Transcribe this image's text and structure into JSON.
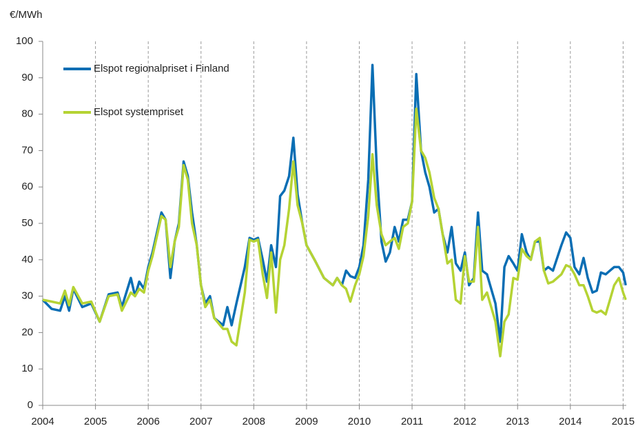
{
  "chart_data": {
    "type": "line",
    "y_label": "€/MWh",
    "x": [
      2004.0,
      2004.17,
      2004.33,
      2004.42,
      2004.5,
      2004.58,
      2004.75,
      2004.92,
      2005.08,
      2005.25,
      2005.42,
      2005.5,
      2005.67,
      2005.75,
      2005.83,
      2005.92,
      2006.0,
      2006.08,
      2006.25,
      2006.33,
      2006.42,
      2006.5,
      2006.58,
      2006.67,
      2006.75,
      2006.83,
      2006.92,
      2007.0,
      2007.08,
      2007.17,
      2007.25,
      2007.42,
      2007.5,
      2007.58,
      2007.67,
      2007.83,
      2007.92,
      2008.0,
      2008.08,
      2008.17,
      2008.25,
      2008.33,
      2008.42,
      2008.5,
      2008.58,
      2008.67,
      2008.75,
      2008.83,
      2008.92,
      2009.0,
      2009.17,
      2009.33,
      2009.5,
      2009.58,
      2009.67,
      2009.75,
      2009.83,
      2009.92,
      2010.0,
      2010.08,
      2010.17,
      2010.25,
      2010.33,
      2010.42,
      2010.5,
      2010.58,
      2010.67,
      2010.75,
      2010.83,
      2010.92,
      2011.0,
      2011.08,
      2011.17,
      2011.25,
      2011.33,
      2011.42,
      2011.5,
      2011.58,
      2011.67,
      2011.75,
      2011.83,
      2011.92,
      2012.0,
      2012.08,
      2012.17,
      2012.25,
      2012.33,
      2012.42,
      2012.58,
      2012.67,
      2012.75,
      2012.83,
      2012.92,
      2013.0,
      2013.08,
      2013.17,
      2013.25,
      2013.33,
      2013.42,
      2013.5,
      2013.58,
      2013.67,
      2013.83,
      2013.92,
      2014.0,
      2014.08,
      2014.17,
      2014.25,
      2014.33,
      2014.42,
      2014.5,
      2014.58,
      2014.67,
      2014.75,
      2014.83,
      2014.92,
      2015.0,
      2015.05
    ],
    "series": [
      {
        "name": "Elspot regionalpriset i Finland",
        "color": "#0a6eb4",
        "values": [
          29,
          26.5,
          26,
          30,
          26,
          32,
          27,
          28,
          23,
          30.5,
          31,
          27,
          35,
          30,
          34,
          32,
          38,
          42,
          53,
          51,
          35,
          45,
          50,
          67,
          63,
          53,
          44,
          33,
          28,
          30,
          24,
          22,
          27,
          22,
          28,
          38,
          46,
          45.5,
          46,
          40,
          34,
          44,
          38,
          57.5,
          59,
          63,
          73.5,
          58,
          50,
          44,
          39.5,
          35,
          33,
          35,
          33,
          37,
          35.5,
          35,
          38,
          44,
          62,
          93.5,
          65,
          45,
          39.5,
          42,
          49,
          45,
          51,
          51,
          56,
          91,
          70,
          64,
          60,
          53,
          54,
          47,
          42,
          49,
          39,
          37,
          42,
          33,
          35,
          53,
          37,
          36,
          28,
          17.5,
          38,
          41,
          39,
          37,
          47,
          42,
          40,
          45,
          45,
          37,
          38,
          37,
          44,
          47.5,
          46,
          38,
          36,
          40.5,
          35,
          31,
          31.5,
          36.5,
          36,
          37,
          38,
          38,
          36.5,
          33
        ]
      },
      {
        "name": "Elspot systempriset",
        "color": "#b5d334",
        "values": [
          29,
          28.5,
          28,
          31.5,
          27.5,
          32.5,
          28,
          28.5,
          23,
          30,
          30.5,
          26,
          31,
          30,
          32,
          31,
          37,
          41,
          52,
          51,
          38,
          45,
          49,
          66,
          62,
          50,
          44,
          33,
          27,
          29,
          24,
          21,
          21,
          17.5,
          16.5,
          31,
          45.5,
          45,
          45.5,
          36,
          29.5,
          42,
          25.5,
          40,
          44,
          54,
          67,
          55,
          50,
          44,
          39.5,
          35,
          33,
          35,
          33,
          32,
          28.5,
          33,
          36,
          41,
          52,
          69,
          55,
          47,
          44,
          45,
          46,
          43,
          49,
          50,
          56,
          81.5,
          70,
          68,
          64,
          57,
          54,
          47,
          39,
          40,
          29,
          28,
          41,
          34,
          34,
          49,
          29,
          31,
          23,
          13.5,
          23,
          25,
          35,
          34.5,
          43,
          41,
          40,
          45,
          46,
          37,
          33.5,
          34,
          36,
          38.5,
          38,
          36,
          33,
          33,
          30,
          26,
          25.5,
          26,
          25,
          29,
          33,
          35,
          31,
          29
        ]
      }
    ],
    "xlim": [
      2004,
      2015.06
    ],
    "ylim": [
      0,
      100
    ],
    "xticks": [
      2004,
      2005,
      2006,
      2007,
      2008,
      2009,
      2010,
      2011,
      2012,
      2013,
      2014,
      2015
    ],
    "yticks": [
      0,
      10,
      20,
      30,
      40,
      50,
      60,
      70,
      80,
      90,
      100
    ],
    "grid": "x"
  }
}
